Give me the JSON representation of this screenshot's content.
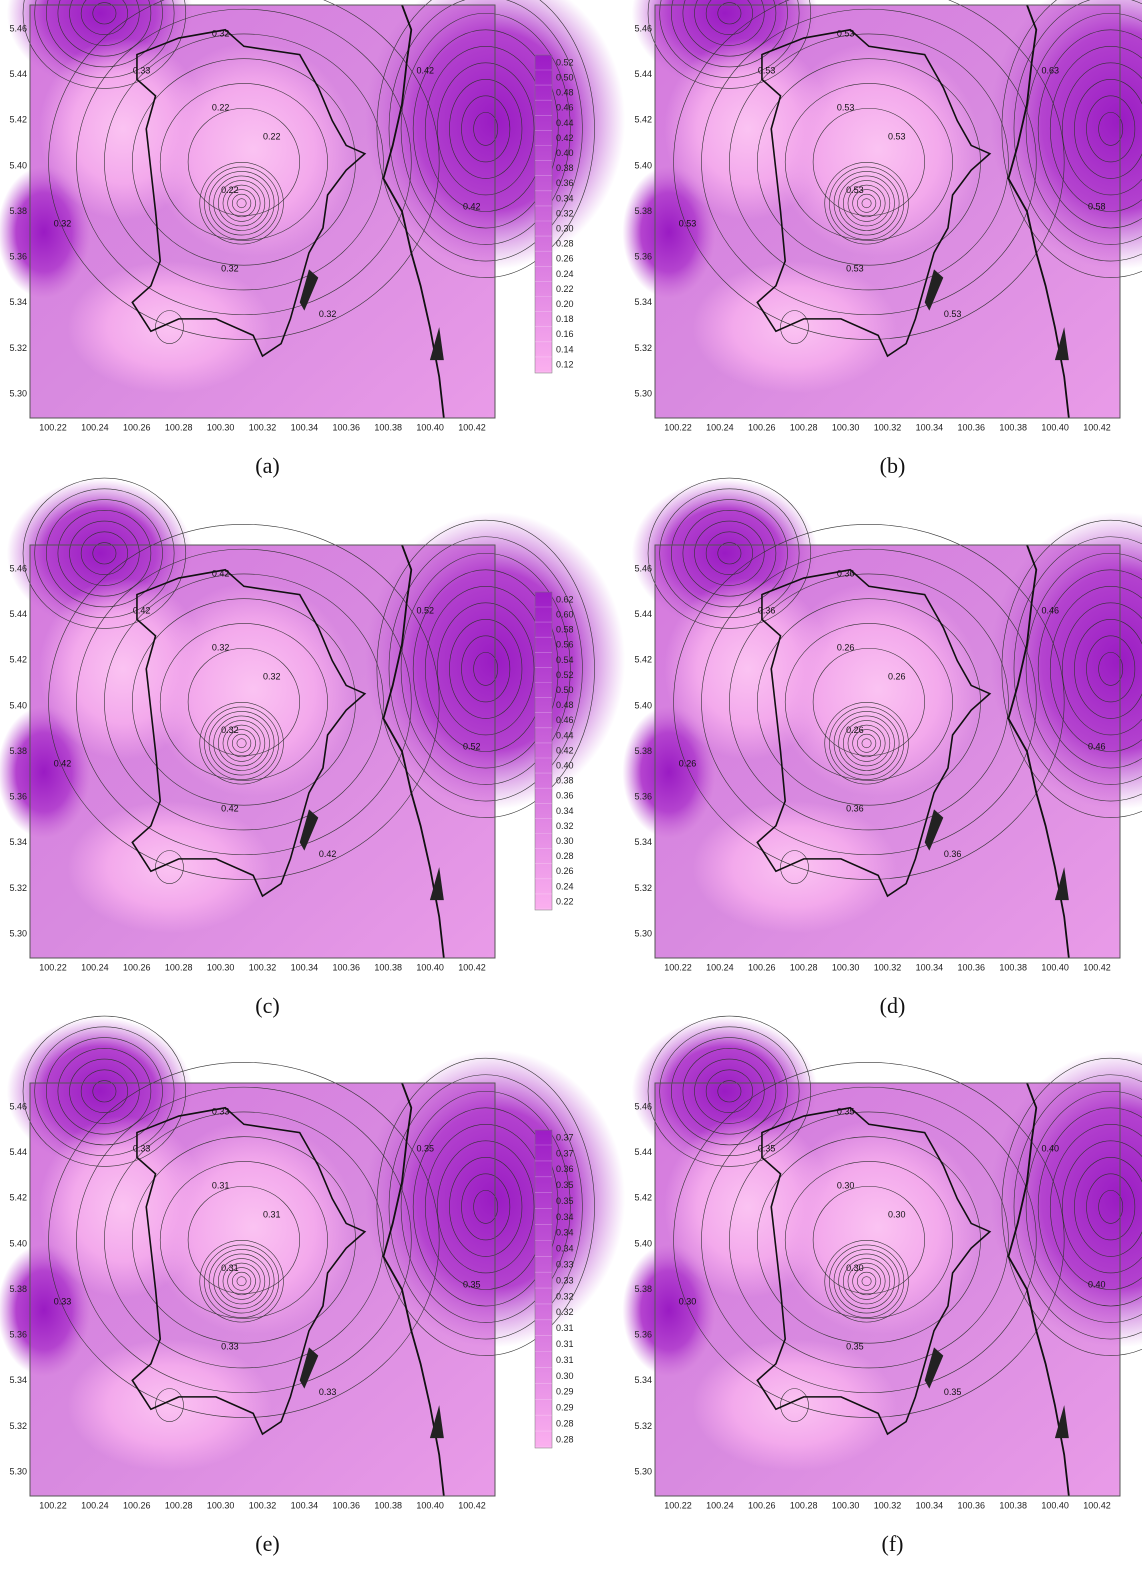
{
  "panels": [
    {
      "label": "(a)",
      "x_ticks": [
        "100.22",
        "100.24",
        "100.26",
        "100.28",
        "100.30",
        "100.32",
        "100.34",
        "100.36",
        "100.38",
        "100.40",
        "100.42"
      ],
      "y_ticks": [
        "5.46",
        "5.44",
        "5.42",
        "5.40",
        "5.38",
        "5.36",
        "5.34",
        "5.32",
        "5.30"
      ],
      "contour_labels": [
        "0.32",
        "0.33",
        "0.22",
        "0.22",
        "0.22",
        "0.32",
        "0.32",
        "0.42",
        "0.42",
        "0.32"
      ]
    },
    {
      "label": "(b)",
      "x_ticks": [
        "100.22",
        "100.24",
        "100.26",
        "100.28",
        "100.30",
        "100.32",
        "100.34",
        "100.36",
        "100.38",
        "100.40",
        "100.42"
      ],
      "y_ticks": [
        "5.46",
        "5.44",
        "5.42",
        "5.40",
        "5.38",
        "5.36",
        "5.34",
        "5.32",
        "5.30"
      ],
      "contour_labels": [
        "0.53",
        "0.53",
        "0.53",
        "0.53",
        "0.53",
        "0.53",
        "0.53",
        "0.63",
        "0.58",
        "0.53"
      ]
    },
    {
      "label": "(c)",
      "x_ticks": [
        "100.22",
        "100.24",
        "100.26",
        "100.28",
        "100.30",
        "100.32",
        "100.34",
        "100.36",
        "100.38",
        "100.40",
        "100.42"
      ],
      "y_ticks": [
        "5.46",
        "5.44",
        "5.42",
        "5.40",
        "5.38",
        "5.36",
        "5.34",
        "5.32",
        "5.30"
      ],
      "contour_labels": [
        "0.42",
        "0.42",
        "0.32",
        "0.32",
        "0.32",
        "0.42",
        "0.42",
        "0.52",
        "0.52",
        "0.42"
      ]
    },
    {
      "label": "(d)",
      "x_ticks": [
        "100.22",
        "100.24",
        "100.26",
        "100.28",
        "100.30",
        "100.32",
        "100.34",
        "100.36",
        "100.38",
        "100.40",
        "100.42"
      ],
      "y_ticks": [
        "5.46",
        "5.44",
        "5.42",
        "5.40",
        "5.38",
        "5.36",
        "5.34",
        "5.32",
        "5.30"
      ],
      "contour_labels": [
        "0.36",
        "0.36",
        "0.26",
        "0.26",
        "0.26",
        "0.36",
        "0.26",
        "0.46",
        "0.46",
        "0.36"
      ]
    },
    {
      "label": "(e)",
      "x_ticks": [
        "100.22",
        "100.24",
        "100.26",
        "100.28",
        "100.30",
        "100.32",
        "100.34",
        "100.36",
        "100.38",
        "100.40",
        "100.42"
      ],
      "y_ticks": [
        "5.46",
        "5.44",
        "5.42",
        "5.40",
        "5.38",
        "5.36",
        "5.34",
        "5.32",
        "5.30"
      ],
      "contour_labels": [
        "0.33",
        "0.33",
        "0.31",
        "0.31",
        "0.31",
        "0.33",
        "0.33",
        "0.35",
        "0.35",
        "0.33"
      ]
    },
    {
      "label": "(f)",
      "x_ticks": [
        "100.22",
        "100.24",
        "100.26",
        "100.28",
        "100.30",
        "100.32",
        "100.34",
        "100.36",
        "100.38",
        "100.40",
        "100.42"
      ],
      "y_ticks": [
        "5.46",
        "5.44",
        "5.42",
        "5.40",
        "5.38",
        "5.36",
        "5.34",
        "5.32",
        "5.30"
      ],
      "contour_labels": [
        "0.35",
        "0.35",
        "0.30",
        "0.30",
        "0.30",
        "0.35",
        "0.30",
        "0.40",
        "0.40",
        "0.35"
      ]
    }
  ],
  "colorbars": [
    {
      "ticks": [
        "0.52",
        "0.50",
        "0.48",
        "0.46",
        "0.44",
        "0.42",
        "0.40",
        "0.38",
        "0.36",
        "0.34",
        "0.32",
        "0.30",
        "0.28",
        "0.26",
        "0.24",
        "0.22",
        "0.20",
        "0.18",
        "0.16",
        "0.14",
        "0.12"
      ]
    },
    {
      "ticks": [
        "0.62",
        "0.60",
        "0.58",
        "0.56",
        "0.54",
        "0.52",
        "0.50",
        "0.48",
        "0.46",
        "0.44",
        "0.42",
        "0.40",
        "0.38",
        "0.36",
        "0.34",
        "0.32",
        "0.30",
        "0.28",
        "0.26",
        "0.24",
        "0.22"
      ]
    },
    {
      "ticks": [
        "0.37",
        "0.37",
        "0.36",
        "0.35",
        "0.35",
        "0.34",
        "0.34",
        "0.34",
        "0.33",
        "0.33",
        "0.32",
        "0.32",
        "0.31",
        "0.31",
        "0.31",
        "0.30",
        "0.29",
        "0.29",
        "0.28",
        "0.28"
      ]
    }
  ]
}
